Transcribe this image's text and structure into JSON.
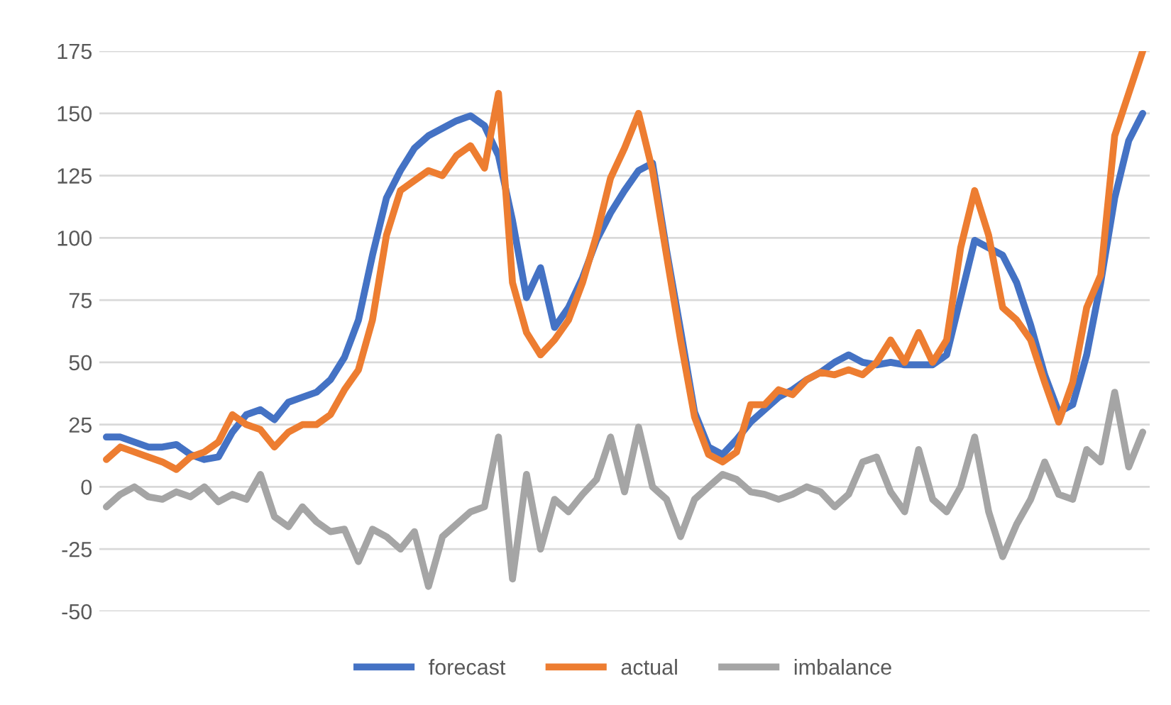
{
  "chart_data": {
    "type": "line",
    "categories": [
      null,
      null,
      null,
      null,
      null,
      null,
      null,
      null,
      null,
      null,
      null,
      null,
      null,
      null,
      null,
      null,
      null,
      null,
      null,
      null,
      null,
      null,
      null,
      null,
      null,
      null,
      null,
      null,
      null,
      null,
      null,
      null,
      null,
      null,
      null,
      null,
      null,
      null,
      null,
      null,
      null,
      null,
      null,
      null,
      null,
      null,
      null,
      null,
      null,
      null,
      null,
      null,
      null,
      null,
      null,
      null,
      null,
      null,
      null,
      null,
      null,
      null,
      null,
      null,
      null,
      null,
      null,
      null,
      null,
      null,
      null,
      null,
      null,
      null,
      null
    ],
    "series": [
      {
        "name": "forecast",
        "color": "#4472c4",
        "values": [
          20,
          20,
          18,
          16,
          16,
          17,
          13,
          11,
          12,
          22,
          29,
          31,
          27,
          34,
          36,
          38,
          43,
          52,
          67,
          93,
          116,
          127,
          136,
          141,
          144,
          147,
          149,
          145,
          133,
          107,
          76,
          88,
          64,
          72,
          84,
          99,
          110,
          119,
          127,
          130,
          95,
          63,
          30,
          16,
          13,
          19,
          26,
          31,
          36,
          39,
          43,
          46,
          50,
          53,
          50,
          49,
          50,
          49,
          49,
          49,
          53,
          76,
          99,
          96,
          93,
          82,
          65,
          45,
          30,
          33,
          53,
          82,
          116,
          139,
          150
        ]
      },
      {
        "name": "actual",
        "color": "#ed7d31",
        "values": [
          11,
          16,
          14,
          12,
          10,
          7,
          12,
          14,
          18,
          29,
          25,
          23,
          16,
          22,
          25,
          25,
          29,
          39,
          47,
          67,
          101,
          119,
          123,
          127,
          125,
          133,
          137,
          128,
          158,
          82,
          62,
          53,
          59,
          67,
          82,
          101,
          124,
          136,
          150,
          127,
          93,
          59,
          28,
          13,
          10,
          14,
          33,
          33,
          39,
          37,
          43,
          46,
          45,
          47,
          45,
          50,
          59,
          50,
          62,
          50,
          59,
          96,
          119,
          101,
          72,
          67,
          59,
          42,
          26,
          42,
          72,
          85,
          141,
          158,
          175
        ]
      },
      {
        "name": "imbalance",
        "color": "#a5a5a5",
        "values": [
          -8,
          -3,
          0,
          -4,
          -5,
          -2,
          -4,
          0,
          -6,
          -3,
          -5,
          5,
          -12,
          -16,
          -8,
          -14,
          -18,
          -17,
          -30,
          -17,
          -20,
          -25,
          -18,
          -40,
          -20,
          -15,
          -10,
          -8,
          20,
          -37,
          5,
          -25,
          -5,
          -10,
          -3,
          3,
          20,
          -2,
          24,
          0,
          -5,
          -20,
          -5,
          0,
          5,
          3,
          -2,
          -3,
          -5,
          -3,
          0,
          -2,
          -8,
          -3,
          10,
          12,
          -2,
          -10,
          15,
          -5,
          -10,
          0,
          20,
          -10,
          -28,
          -15,
          -5,
          10,
          -3,
          -5,
          15,
          10,
          38,
          8,
          22
        ]
      }
    ],
    "ylim": [
      -50,
      175
    ],
    "yticks": [
      -50,
      -25,
      0,
      25,
      50,
      75,
      100,
      125,
      150,
      175
    ],
    "grid": "y",
    "legend": "bottom",
    "tick_labels": "y",
    "marker": "none",
    "line_style": "solid"
  }
}
